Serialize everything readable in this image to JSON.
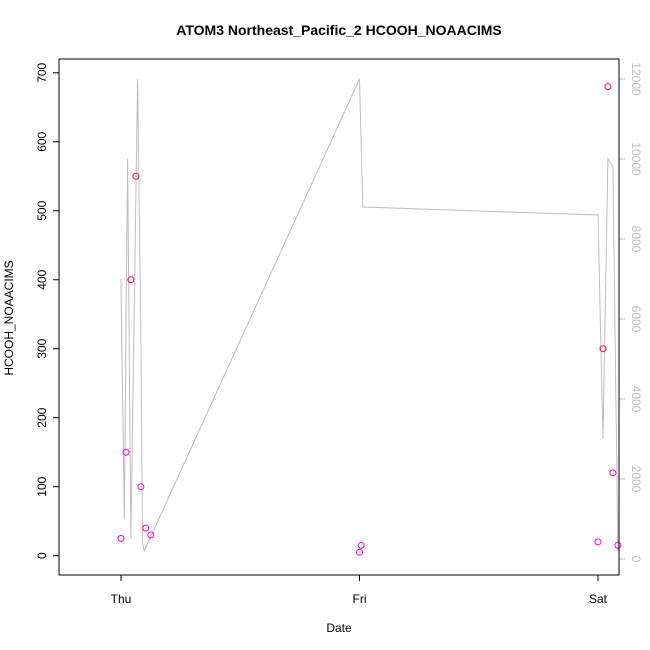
{
  "chart_data": {
    "type": "scatter",
    "title": "ATOM3 Northeast_Pacific_2 HCOOH_NOAACIMS",
    "xlabel": "Date",
    "ylabel": "HCOOH_NOAACIMS",
    "x_ticks": [
      "Thu",
      "Fri",
      "Sat"
    ],
    "y_ticks": [
      0,
      100,
      200,
      300,
      400,
      500,
      600,
      700
    ],
    "y_range": [
      -28,
      720
    ],
    "y2_ticks": [
      0,
      2000,
      4000,
      6000,
      8000,
      10000,
      12000
    ],
    "y2_range": [
      -400,
      12500
    ],
    "grid": false,
    "legend": "none",
    "colors": {
      "points_low": "#ff00cc",
      "points_high": "#ff0066",
      "altitude_line": "#bdbdbd",
      "axis": "#000000",
      "right_axis": "#bdbdbd"
    },
    "series": [
      {
        "x": [
          "Thu 00:00",
          "Thu 00:30",
          "Thu 01:00",
          "Thu 01:30",
          "Thu 02:00",
          "Thu 02:30",
          "Thu 03:00",
          "Fri 00:00",
          "Fri 00:10",
          "Sat 00:00",
          "Sat 00:30",
          "Sat 01:00",
          "Sat 01:30",
          "Sat 02:00"
        ],
        "y": [
          25,
          150,
          400,
          550,
          100,
          40,
          30,
          5,
          15,
          20,
          300,
          680,
          120,
          15
        ]
      },
      {
        "x": [
          "Thu 00:00",
          "Thu 00:20",
          "Thu 00:40",
          "Thu 01:00",
          "Thu 01:40",
          "Thu 02:00",
          "Thu 02:10",
          "Thu 02:20",
          "Fri 00:00",
          "Fri 00:20",
          "Sat 00:00",
          "Sat 00:30",
          "Sat 01:00",
          "Sat 01:30",
          "Sat 02:00"
        ],
        "y": [
          7000,
          1000,
          10000,
          500,
          12000,
          5500,
          400,
          200,
          12000,
          8800,
          8600,
          3000,
          10000,
          9800,
          200
        ]
      }
    ]
  }
}
